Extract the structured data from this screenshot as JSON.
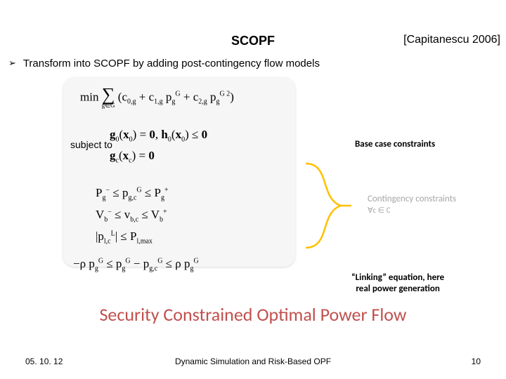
{
  "title": "SCOPF",
  "citation": "[Capitanescu 2006]",
  "bullet": {
    "marker": "➢",
    "text": "Transform into SCOPF by adding post-contingency flow models"
  },
  "subject_to": "subject to",
  "math": {
    "objective_html": "min <span class='sigma-wrap'><span class='sigma-sym'>∑</span><span class='sigma-sub'>g∈G</span></span> (c<span class='sub'>0,g</span> + c<span class='sub'>1,g</span> p<span class='sub'>g</span><span class='sup'>G</span> + c<span class='sub'>2,g</span> p<span class='sub'>g</span><span class='sup'>G 2</span>)",
    "g0_html": "<b>g</b><span class='sub'>0</span>(<b>x</b><span class='sub'>0</span>) = <b>0</b>, <b>h</b><span class='sub'>0</span>(<b>x</b><span class='sub'>0</span>) ≤ <b>0</b>",
    "gc_html": "<b>g</b><span class='sub'>c</span>(<b>x</b><span class='sub'>c</span>) = <b>0</b>",
    "pg_html": "P<span class='sub'>g</span><span class='sup'>−</span> ≤ p<span class='sub'>g,c</span><span class='sup'>G</span> ≤ P<span class='sub'>g</span><span class='sup'>+</span>",
    "vb_html": "V<span class='sub'>b</span><span class='sup'>−</span> ≤ v<span class='sub'>b,c</span> ≤ V<span class='sub'>b</span><span class='sup'>+</span>",
    "pl_html": "<span class='abs'>|</span>p<span class='sub'>l,c</span><span class='sup'>L</span><span class='abs'>|</span> ≤ P<span class='sub'>l,max</span>",
    "link_html": "−ρ p<span class='sub'>g</span><span class='sup'>G</span> ≤ p<span class='sub'>g</span><span class='sup'>G</span> − p<span class='sub'>g,c</span><span class='sup'>G</span> ≤ ρ p<span class='sub'>g</span><span class='sup'>G</span>"
  },
  "annotations": {
    "base": "Base case constraints",
    "contingency_line1": "Contingency constraints",
    "contingency_line2": "∀c ∈ C",
    "linking_line1": "“Linking” equation, here",
    "linking_line2": "real power generation"
  },
  "colors": {
    "brace": "#ffc000",
    "section": "#c0504d",
    "grey": "#a6a6a6"
  },
  "section_title": "Security Constrained Optimal Power Flow",
  "footer": {
    "date": "05. 10. 12",
    "middle": "Dynamic Simulation and Risk-Based OPF",
    "page": "10"
  }
}
